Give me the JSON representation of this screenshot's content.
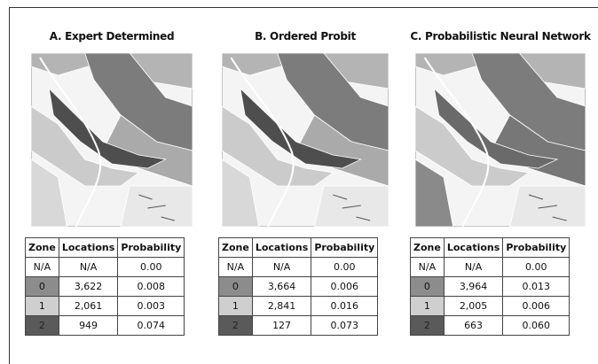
{
  "panels": [
    {
      "title": "A. Expert Determined",
      "table": {
        "header": [
          "Zone",
          "Locations",
          "Probability"
        ],
        "rows": [
          [
            "N/A",
            "N/A",
            "0.00"
          ],
          [
            "0",
            "3,622",
            "0.008"
          ],
          [
            "1",
            "2,061",
            "0.003"
          ],
          [
            "2",
            "949",
            "0.074"
          ]
        ]
      }
    },
    {
      "title": "B. Ordered Probit",
      "table": {
        "header": [
          "Zone",
          "Locations",
          "Probability"
        ],
        "rows": [
          [
            "N/A",
            "N/A",
            "0.00"
          ],
          [
            "0",
            "3,664",
            "0.006"
          ],
          [
            "1",
            "2,841",
            "0.016"
          ],
          [
            "2",
            "127",
            "0.073"
          ]
        ]
      }
    },
    {
      "title": "C. Probabilistic Neural Network",
      "table": {
        "header": [
          "Zone",
          "Locations",
          "Probability"
        ],
        "rows": [
          [
            "N/A",
            "N/A",
            "0.00"
          ],
          [
            "0",
            "3,964",
            "0.013"
          ],
          [
            "1",
            "2,005",
            "0.006"
          ],
          [
            "2",
            "663",
            "0.060"
          ]
        ]
      }
    }
  ]
}
